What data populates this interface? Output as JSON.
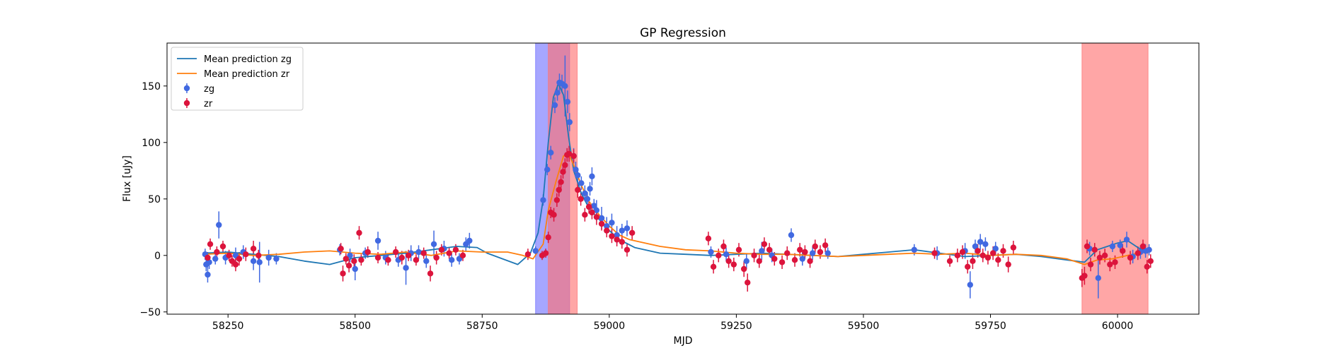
{
  "chart_data": {
    "type": "scatter",
    "title": "GP Regression",
    "xlabel": "MJD",
    "ylabel": "Flux [uJy]",
    "xlim": [
      58130,
      60160
    ],
    "ylim": [
      -52,
      188
    ],
    "xticks": [
      58250,
      58500,
      58750,
      59000,
      59250,
      59500,
      59750,
      60000
    ],
    "yticks": [
      -50,
      0,
      50,
      100,
      150
    ],
    "grid": false,
    "legend_position": "top-left",
    "colors": {
      "zg": "#4169e1",
      "zr": "#dc143c",
      "mean_zg": "#1f77b4",
      "mean_zr": "#ff7f0e",
      "span_blue": "#6b6bff",
      "span_red": "#ff7070"
    },
    "spans": [
      {
        "color": "blue",
        "x0": 58855,
        "x1": 58922
      },
      {
        "color": "red",
        "x0": 58880,
        "x1": 58937
      },
      {
        "color": "red",
        "x0": 59930,
        "x1": 60060
      }
    ],
    "legend": [
      {
        "label": "Mean prediction zg",
        "kind": "line",
        "color": "mean_zg"
      },
      {
        "label": "Mean prediction zr",
        "kind": "line",
        "color": "mean_zr"
      },
      {
        "label": "zg",
        "kind": "point",
        "color": "zg"
      },
      {
        "label": "zr",
        "kind": "point",
        "color": "zr"
      }
    ],
    "series": [
      {
        "name": "Mean prediction zg",
        "kind": "line",
        "x": [
          58200,
          58250,
          58300,
          58350,
          58400,
          58450,
          58500,
          58550,
          58600,
          58650,
          58700,
          58740,
          58760,
          58790,
          58820,
          58845,
          58860,
          58870,
          58880,
          58890,
          58900,
          58910,
          58920,
          58930,
          58945,
          58960,
          58980,
          59000,
          59020,
          59050,
          59100,
          59150,
          59200,
          59250,
          59300,
          59350,
          59400,
          59450,
          59500,
          59550,
          59600,
          59650,
          59700,
          59750,
          59800,
          59850,
          59900,
          59935,
          59960,
          59980,
          60000,
          60020,
          60040,
          60060
        ],
        "y": [
          2,
          3,
          1,
          -1,
          -5,
          -8,
          -2,
          0,
          2,
          5,
          8,
          7,
          2,
          -3,
          -8,
          2,
          20,
          50,
          100,
          140,
          152,
          142,
          105,
          75,
          55,
          42,
          32,
          22,
          14,
          7,
          2,
          1,
          0,
          1,
          2,
          1,
          0,
          -1,
          1,
          3,
          5,
          2,
          -1,
          0,
          1,
          -1,
          -4,
          -6,
          5,
          8,
          11,
          13,
          7,
          2
        ]
      },
      {
        "name": "Mean prediction zr",
        "kind": "line",
        "x": [
          58200,
          58250,
          58300,
          58350,
          58400,
          58450,
          58500,
          58550,
          58600,
          58650,
          58700,
          58750,
          58800,
          58830,
          58850,
          58870,
          58880,
          58895,
          58910,
          58920,
          58930,
          58945,
          58960,
          58980,
          59000,
          59020,
          59040,
          59060,
          59100,
          59150,
          59200,
          59250,
          59300,
          59350,
          59400,
          59450,
          59500,
          59550,
          59600,
          59650,
          59700,
          59750,
          59800,
          59850,
          59900,
          59935,
          59960,
          59990,
          60020,
          60060
        ],
        "y": [
          1,
          2,
          0,
          1,
          3,
          4,
          2,
          1,
          3,
          0,
          4,
          3,
          3,
          0,
          -3,
          10,
          40,
          65,
          88,
          90,
          80,
          62,
          48,
          36,
          26,
          18,
          14,
          12,
          8,
          5,
          4,
          2,
          1,
          1,
          0,
          -1,
          0,
          1,
          2,
          1,
          2,
          0,
          1,
          0,
          -3,
          -8,
          -4,
          -3,
          0,
          4
        ]
      },
      {
        "name": "zg",
        "kind": "point",
        "points": [
          [
            58205,
            1,
            5
          ],
          [
            58207,
            -8,
            6
          ],
          [
            58210,
            -17,
            7
          ],
          [
            58213,
            -6,
            6
          ],
          [
            58225,
            -3,
            5
          ],
          [
            58232,
            27,
            12
          ],
          [
            58245,
            -2,
            6
          ],
          [
            58265,
            0,
            7
          ],
          [
            58280,
            3,
            6
          ],
          [
            58300,
            -5,
            8
          ],
          [
            58312,
            -6,
            18
          ],
          [
            58330,
            -2,
            7
          ],
          [
            58345,
            -3,
            5
          ],
          [
            58470,
            5,
            5
          ],
          [
            58490,
            0,
            6
          ],
          [
            58500,
            -12,
            10
          ],
          [
            58520,
            2,
            5
          ],
          [
            58545,
            13,
            8
          ],
          [
            58560,
            -2,
            6
          ],
          [
            58585,
            -4,
            6
          ],
          [
            58600,
            -11,
            15
          ],
          [
            58610,
            2,
            7
          ],
          [
            58625,
            3,
            6
          ],
          [
            58640,
            -5,
            6
          ],
          [
            58655,
            10,
            12
          ],
          [
            58675,
            6,
            7
          ],
          [
            58690,
            -4,
            6
          ],
          [
            58705,
            -3,
            5
          ],
          [
            58718,
            10,
            6
          ],
          [
            58725,
            13,
            7
          ],
          [
            58855,
            4,
            4
          ],
          [
            58870,
            49,
            5
          ],
          [
            58878,
            76,
            5
          ],
          [
            58885,
            91,
            6
          ],
          [
            58893,
            133,
            7
          ],
          [
            58898,
            144,
            7
          ],
          [
            58902,
            153,
            8
          ],
          [
            58907,
            152,
            8
          ],
          [
            58913,
            150,
            27
          ],
          [
            58918,
            136,
            10
          ],
          [
            58922,
            118,
            8
          ],
          [
            58930,
            88,
            7
          ],
          [
            58934,
            76,
            7
          ],
          [
            58938,
            71,
            6
          ],
          [
            58945,
            64,
            6
          ],
          [
            58952,
            55,
            7
          ],
          [
            58957,
            50,
            6
          ],
          [
            58962,
            59,
            6
          ],
          [
            58966,
            70,
            8
          ],
          [
            58970,
            44,
            6
          ],
          [
            58975,
            40,
            9
          ],
          [
            58985,
            33,
            10
          ],
          [
            58995,
            26,
            8
          ],
          [
            59005,
            29,
            8
          ],
          [
            59015,
            18,
            8
          ],
          [
            59025,
            22,
            6
          ],
          [
            59035,
            24,
            7
          ],
          [
            59200,
            3,
            5
          ],
          [
            59230,
            1,
            6
          ],
          [
            59270,
            -5,
            7
          ],
          [
            59300,
            4,
            8
          ],
          [
            59320,
            0,
            6
          ],
          [
            59358,
            18,
            6
          ],
          [
            59380,
            -3,
            6
          ],
          [
            59400,
            2,
            6
          ],
          [
            59430,
            2,
            5
          ],
          [
            59600,
            5,
            5
          ],
          [
            59645,
            2,
            6
          ],
          [
            59700,
            4,
            7
          ],
          [
            59710,
            -26,
            12
          ],
          [
            59720,
            8,
            6
          ],
          [
            59730,
            12,
            7
          ],
          [
            59740,
            10,
            6
          ],
          [
            59760,
            6,
            6
          ],
          [
            59945,
            6,
            6
          ],
          [
            59962,
            -20,
            18
          ],
          [
            59990,
            8,
            5
          ],
          [
            60005,
            9,
            5
          ],
          [
            60018,
            14,
            7
          ],
          [
            60030,
            -1,
            6
          ],
          [
            60045,
            3,
            6
          ],
          [
            60055,
            4,
            6
          ],
          [
            60062,
            5,
            5
          ]
        ]
      },
      {
        "name": "zr",
        "kind": "point",
        "points": [
          [
            58210,
            -2,
            5
          ],
          [
            58215,
            10,
            5
          ],
          [
            58228,
            3,
            5
          ],
          [
            58240,
            8,
            5
          ],
          [
            58252,
            0,
            5
          ],
          [
            58258,
            -5,
            5
          ],
          [
            58265,
            -8,
            6
          ],
          [
            58272,
            -3,
            6
          ],
          [
            58285,
            1,
            6
          ],
          [
            58300,
            6,
            7
          ],
          [
            58310,
            0,
            5
          ],
          [
            58472,
            6,
            5
          ],
          [
            58476,
            -16,
            7
          ],
          [
            58482,
            -3,
            5
          ],
          [
            58488,
            -9,
            6
          ],
          [
            58498,
            -5,
            6
          ],
          [
            58508,
            20,
            6
          ],
          [
            58512,
            -4,
            5
          ],
          [
            58525,
            3,
            5
          ],
          [
            58545,
            -2,
            5
          ],
          [
            58565,
            -4,
            5
          ],
          [
            58580,
            3,
            5
          ],
          [
            58592,
            -2,
            6
          ],
          [
            58605,
            0,
            5
          ],
          [
            58620,
            -4,
            5
          ],
          [
            58635,
            2,
            5
          ],
          [
            58648,
            -16,
            7
          ],
          [
            58660,
            -2,
            6
          ],
          [
            58670,
            5,
            5
          ],
          [
            58685,
            2,
            5
          ],
          [
            58698,
            5,
            5
          ],
          [
            58712,
            0,
            5
          ],
          [
            58840,
            1,
            5
          ],
          [
            58868,
            0,
            4
          ],
          [
            58875,
            2,
            4
          ],
          [
            58880,
            16,
            5
          ],
          [
            58885,
            38,
            5
          ],
          [
            58891,
            36,
            6
          ],
          [
            58897,
            49,
            6
          ],
          [
            58901,
            58,
            6
          ],
          [
            58905,
            65,
            6
          ],
          [
            58909,
            74,
            6
          ],
          [
            58913,
            80,
            6
          ],
          [
            58917,
            89,
            6
          ],
          [
            58921,
            90,
            7
          ],
          [
            58930,
            88,
            6
          ],
          [
            58938,
            58,
            7
          ],
          [
            58944,
            50,
            6
          ],
          [
            58952,
            36,
            6
          ],
          [
            58960,
            43,
            6
          ],
          [
            58966,
            38,
            6
          ],
          [
            58975,
            34,
            7
          ],
          [
            58985,
            28,
            6
          ],
          [
            58995,
            22,
            6
          ],
          [
            59005,
            17,
            6
          ],
          [
            59015,
            14,
            6
          ],
          [
            59025,
            12,
            6
          ],
          [
            59035,
            5,
            6
          ],
          [
            59045,
            20,
            6
          ],
          [
            59195,
            15,
            6
          ],
          [
            59205,
            -10,
            6
          ],
          [
            59215,
            0,
            6
          ],
          [
            59225,
            8,
            6
          ],
          [
            59235,
            -5,
            6
          ],
          [
            59245,
            -8,
            6
          ],
          [
            59255,
            5,
            6
          ],
          [
            59265,
            -12,
            7
          ],
          [
            59272,
            -24,
            8
          ],
          [
            59285,
            0,
            6
          ],
          [
            59295,
            -5,
            6
          ],
          [
            59305,
            10,
            6
          ],
          [
            59315,
            5,
            6
          ],
          [
            59325,
            -3,
            6
          ],
          [
            59340,
            -6,
            6
          ],
          [
            59350,
            2,
            6
          ],
          [
            59365,
            -4,
            6
          ],
          [
            59375,
            5,
            6
          ],
          [
            59385,
            3,
            6
          ],
          [
            59395,
            -5,
            6
          ],
          [
            59405,
            8,
            6
          ],
          [
            59415,
            3,
            6
          ],
          [
            59425,
            9,
            6
          ],
          [
            59640,
            2,
            5
          ],
          [
            59670,
            -5,
            5
          ],
          [
            59685,
            0,
            6
          ],
          [
            59695,
            3,
            6
          ],
          [
            59705,
            -10,
            6
          ],
          [
            59715,
            -5,
            7
          ],
          [
            59725,
            4,
            6
          ],
          [
            59735,
            0,
            6
          ],
          [
            59745,
            -2,
            6
          ],
          [
            59755,
            2,
            6
          ],
          [
            59765,
            -4,
            6
          ],
          [
            59775,
            4,
            6
          ],
          [
            59785,
            -8,
            7
          ],
          [
            59795,
            7,
            6
          ],
          [
            59930,
            -20,
            8
          ],
          [
            59935,
            -18,
            8
          ],
          [
            59940,
            8,
            6
          ],
          [
            59947,
            -8,
            6
          ],
          [
            59955,
            5,
            6
          ],
          [
            59965,
            -2,
            6
          ],
          [
            59975,
            0,
            6
          ],
          [
            59985,
            -8,
            6
          ],
          [
            59995,
            -6,
            6
          ],
          [
            60010,
            4,
            6
          ],
          [
            60025,
            -2,
            6
          ],
          [
            60040,
            2,
            6
          ],
          [
            60050,
            8,
            6
          ],
          [
            60058,
            -10,
            6
          ],
          [
            60065,
            -5,
            6
          ]
        ]
      }
    ]
  }
}
